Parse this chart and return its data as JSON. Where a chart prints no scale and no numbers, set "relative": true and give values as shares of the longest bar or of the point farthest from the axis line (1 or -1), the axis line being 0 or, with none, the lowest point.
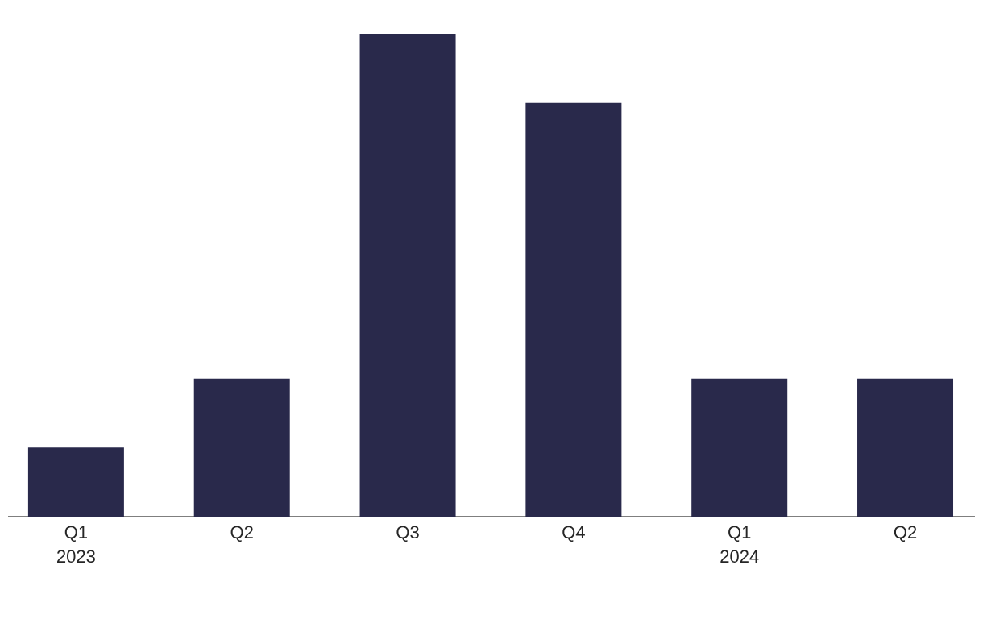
{
  "chart_data": {
    "type": "bar",
    "relative": true,
    "categories": [
      "Q1 2023",
      "Q2",
      "Q3",
      "Q4",
      "Q1 2024",
      "Q2"
    ],
    "values": [
      0.143,
      0.286,
      1,
      0.857,
      0.286,
      0.286
    ],
    "color": "#29294b"
  }
}
